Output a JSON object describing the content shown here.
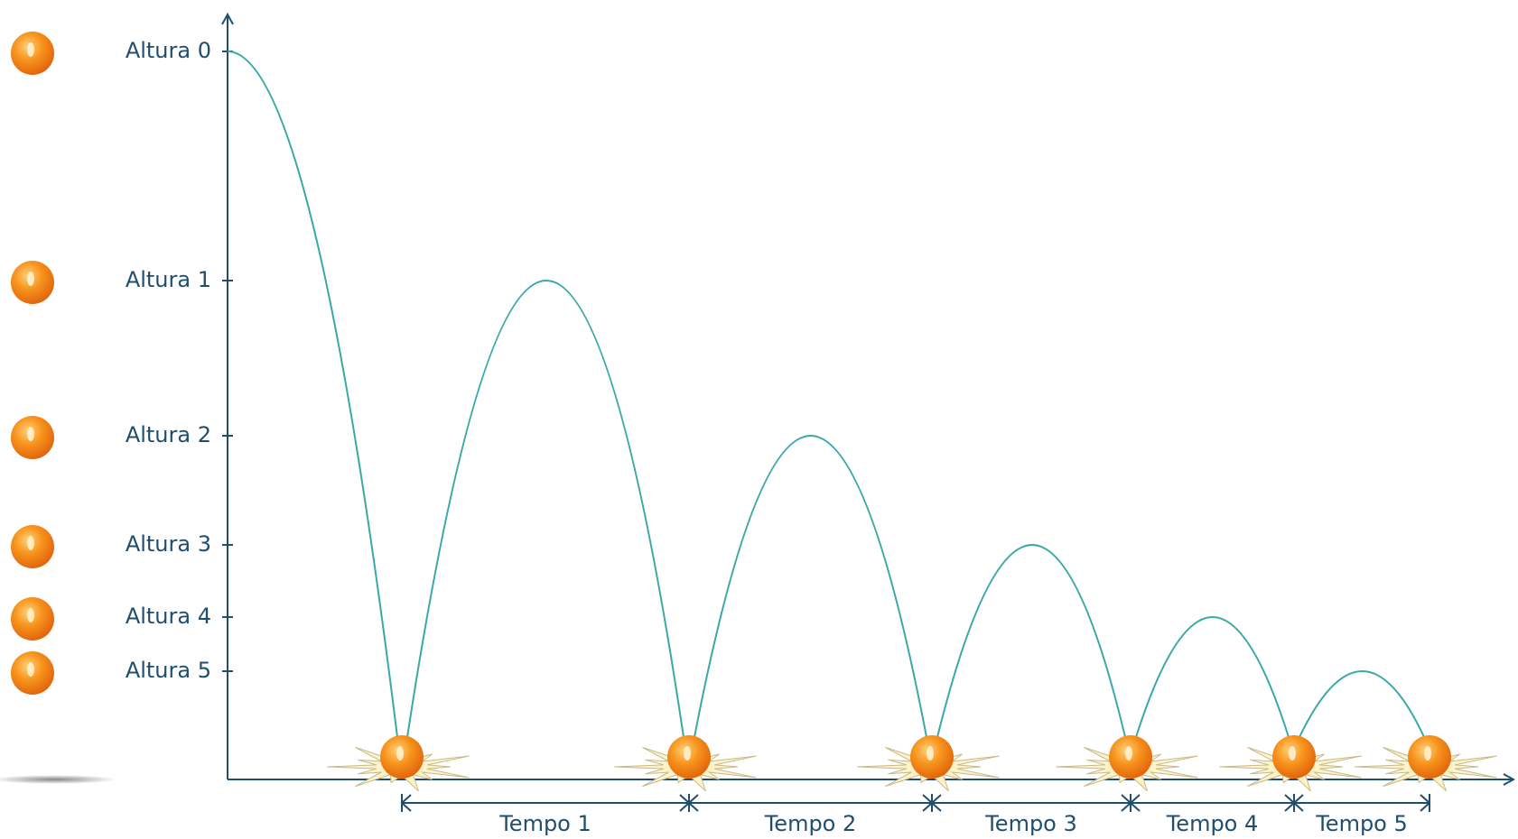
{
  "heights": [
    "Altura 0",
    "Altura 1",
    "Altura 2",
    "Altura 3",
    "Altura 4",
    "Altura 5"
  ],
  "times": [
    "Tempo 1",
    "Tempo 2",
    "Tempo 3",
    "Tempo 4",
    "Tempo 5"
  ]
}
